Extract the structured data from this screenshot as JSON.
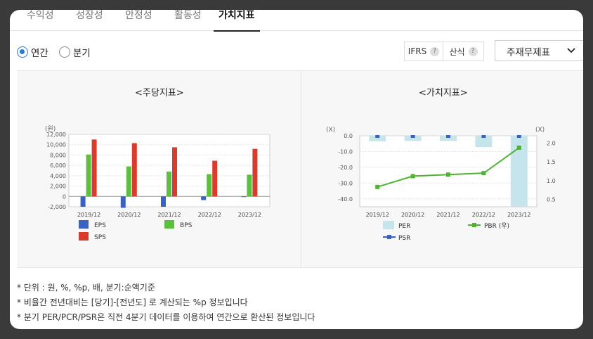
{
  "tabs": [
    "수익성",
    "성장성",
    "안정성",
    "활동성",
    "가치지표"
  ],
  "active_tab": "가치지표",
  "period": {
    "options": [
      "연간",
      "분기"
    ],
    "selected": "연간"
  },
  "toolbar": {
    "ifrs_label": "IFRS",
    "formula_label": "산식",
    "help_glyph": "?",
    "select_value": "주재무제표"
  },
  "panels": {
    "left_title": "<주당지표>",
    "right_title": "<가치지표>"
  },
  "notes": [
    "* 단위 : 원, %, %p, 배, 분기:순액기준",
    "* 비율간 전년대비는 [당기]-[전년도] 로 계산되는 %p 정보입니다",
    "* 분기 PER/PCR/PSR은 직전 4분기 데이터를 이용하여 연간으로 환산된 정보입니다"
  ],
  "colors": {
    "eps": "#3a62c2",
    "bps": "#5cbf3e",
    "sps": "#d93b2c",
    "per": "#c6e4ec",
    "pbr": "#4fb232",
    "psr": "#3a62c2",
    "accent": "#2e77d0"
  },
  "chart_data": [
    {
      "type": "bar",
      "title": "<주당지표>",
      "unit_label": "(원)",
      "categories": [
        "2019/12",
        "2020/12",
        "2021/12",
        "2022/12",
        "2023/12"
      ],
      "ylim": [
        -2000,
        12000
      ],
      "yticks": [
        "12,000",
        "10,000",
        "8,000",
        "6,000",
        "4,000",
        "2,000",
        "0",
        "-2,000"
      ],
      "series": [
        {
          "name": "EPS",
          "values": [
            -2000,
            -2200,
            -2000,
            -700,
            -100
          ]
        },
        {
          "name": "BPS",
          "values": [
            8100,
            5800,
            4800,
            4300,
            4200
          ]
        },
        {
          "name": "SPS",
          "values": [
            11000,
            10300,
            9500,
            6900,
            9200
          ]
        }
      ],
      "legend": [
        "EPS",
        "BPS",
        "SPS"
      ],
      "grid": true
    },
    {
      "type": "bar+line",
      "title": "<가치지표>",
      "left_unit": "(X)",
      "right_unit": "(X)",
      "categories": [
        "2019/12",
        "2020/12",
        "2021/12",
        "2022/12",
        "2023/12"
      ],
      "left_ylim": [
        -45,
        0
      ],
      "left_ticks": [
        "0.0",
        "-10.0",
        "-20.0",
        "-30.0",
        "-40.0"
      ],
      "right_ylim": [
        0.3,
        2.2
      ],
      "right_ticks": [
        "2.0",
        "1.5",
        "1.0",
        "0.5"
      ],
      "series": [
        {
          "name": "PER",
          "axis": "left",
          "values": [
            -3.5,
            -3.3,
            -3.3,
            -7.2,
            -46.5
          ]
        },
        {
          "name": "PBR (우)",
          "axis": "right",
          "values": [
            0.83,
            1.12,
            1.16,
            1.2,
            1.88
          ]
        },
        {
          "name": "PSR",
          "axis": "left",
          "values": [
            -0.3,
            -0.3,
            -0.3,
            -0.3,
            -0.3
          ]
        }
      ],
      "legend": [
        "PER",
        "PBR (우)",
        "PSR"
      ],
      "grid": true
    }
  ]
}
